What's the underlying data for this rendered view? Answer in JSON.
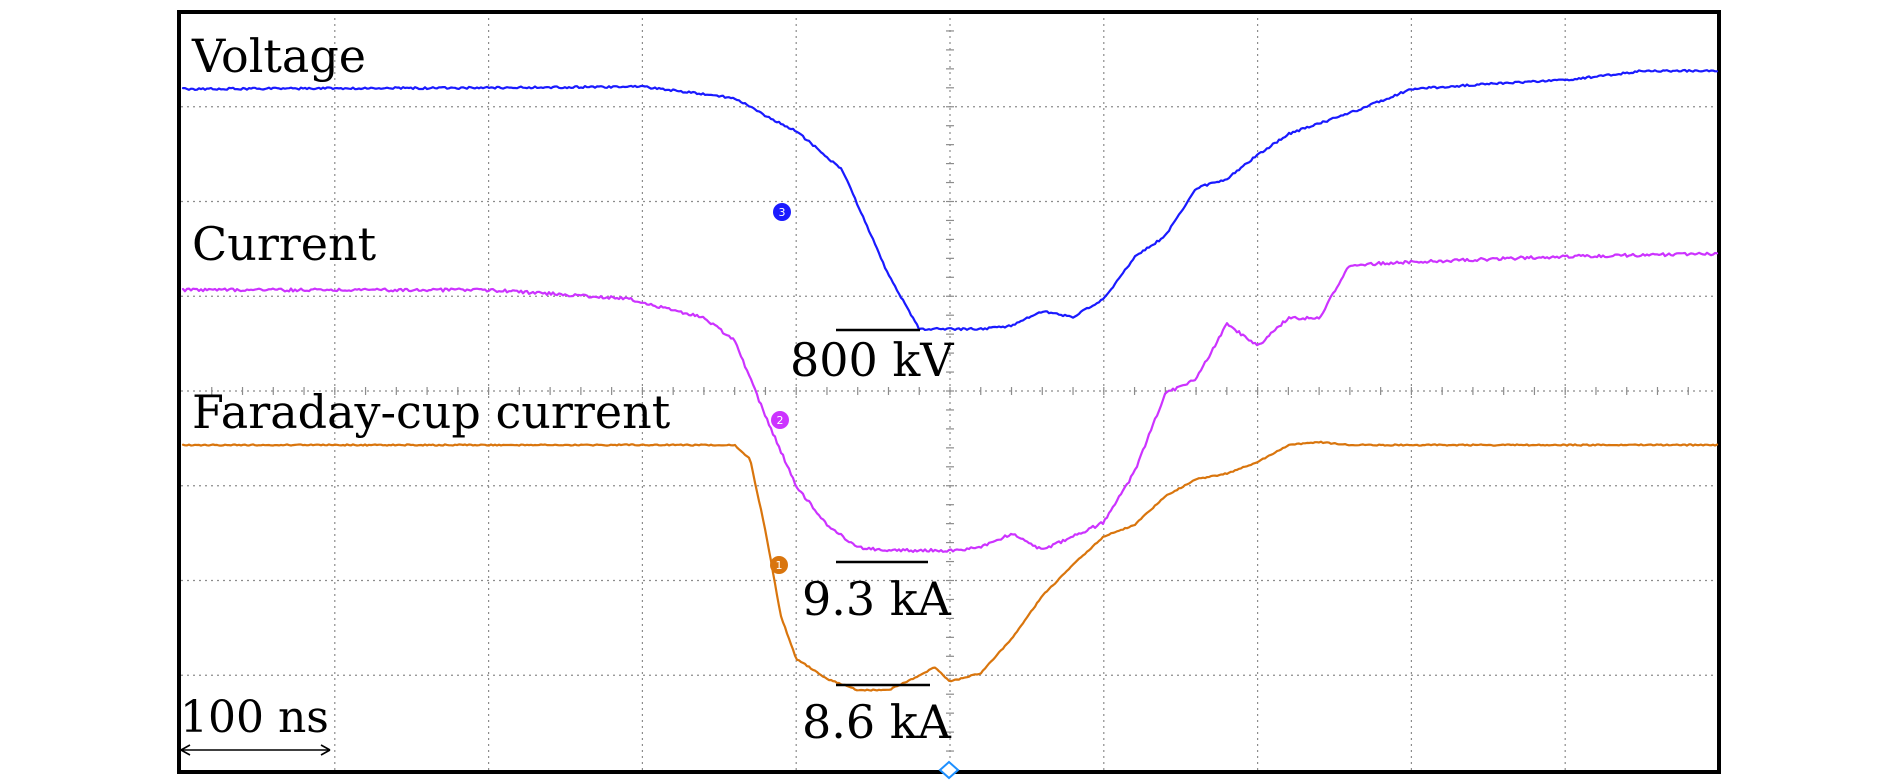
{
  "chart_data": {
    "type": "line",
    "title": "",
    "xlabel": "",
    "ylabel": "",
    "grid": true,
    "divisions": {
      "x": 10,
      "y": 8
    },
    "x_range_ns": [
      0,
      1000
    ],
    "timebase_label": "100 ns",
    "series": [
      {
        "name": "Voltage",
        "color": "#1a1aff",
        "channel_marker": "3",
        "unit": "kV",
        "peak_label": "800 kV",
        "x": [
          0,
          100,
          200,
          300,
          360,
          380,
          400,
          430,
          460,
          480,
          490,
          500,
          520,
          540,
          560,
          580,
          600,
          620,
          640,
          660,
          680,
          700,
          720,
          760,
          800,
          860,
          900,
          950,
          1000
        ],
        "y": [
          0,
          2,
          4,
          8,
          -30,
          -90,
          -140,
          -270,
          -620,
          -800,
          -800,
          -800,
          -800,
          -790,
          -740,
          -760,
          -700,
          -560,
          -490,
          -330,
          -300,
          -220,
          -150,
          -80,
          0,
          20,
          30,
          60,
          60
        ]
      },
      {
        "name": "Current",
        "color": "#cc33ff",
        "channel_marker": "2",
        "unit": "kA",
        "peak_label": "9.3 kA",
        "x": [
          0,
          100,
          200,
          290,
          340,
          360,
          380,
          400,
          420,
          440,
          460,
          480,
          500,
          520,
          540,
          560,
          600,
          620,
          640,
          660,
          680,
          700,
          720,
          740,
          760,
          800,
          900,
          1000
        ],
        "y": [
          0,
          0,
          0,
          -0.3,
          -1.0,
          -1.8,
          -4.5,
          -7.0,
          -8.4,
          -9.2,
          -9.3,
          -9.3,
          -9.3,
          -9.2,
          -8.7,
          -9.3,
          -8.3,
          -6.5,
          -3.7,
          -3.2,
          -1.2,
          -2.0,
          -1.0,
          -1.0,
          0.9,
          1.0,
          1.2,
          1.3
        ]
      },
      {
        "name": "Faraday-cup current",
        "color": "#d9750d",
        "channel_marker": "1",
        "unit": "kA",
        "peak_label": "8.6 kA",
        "x": [
          0,
          100,
          200,
          300,
          360,
          370,
          380,
          390,
          400,
          420,
          440,
          460,
          480,
          490,
          500,
          520,
          540,
          560,
          580,
          600,
          620,
          640,
          660,
          680,
          700,
          720,
          740,
          760,
          780,
          800,
          900,
          1000
        ],
        "y": [
          0,
          0,
          0,
          0,
          0,
          -0.5,
          -3.0,
          -6.0,
          -7.5,
          -8.2,
          -8.6,
          -8.6,
          -8.1,
          -7.8,
          -8.3,
          -8.0,
          -6.8,
          -5.3,
          -4.2,
          -3.2,
          -2.8,
          -1.8,
          -1.2,
          -1.0,
          -0.6,
          0,
          0.1,
          0,
          0,
          0,
          0,
          0
        ]
      }
    ]
  }
}
